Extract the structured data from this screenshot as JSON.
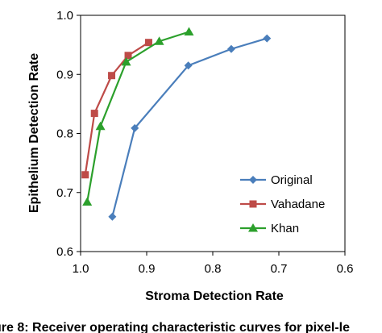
{
  "chart_data": {
    "type": "line",
    "title": "",
    "xlabel": "Stroma Detection Rate",
    "ylabel": "Epithelium Detection Rate",
    "xlim": [
      1.0,
      0.6
    ],
    "ylim": [
      0.6,
      1.0
    ],
    "x_reversed": true,
    "xticks": [
      "1.0",
      "0.9",
      "0.8",
      "0.7",
      "0.6"
    ],
    "yticks": [
      "0.6",
      "0.7",
      "0.8",
      "0.9",
      "1.0"
    ],
    "grid": false,
    "legend_position": "bottom-right-inside",
    "series": [
      {
        "name": "Original",
        "color": "#4a7ebb",
        "marker": "diamond",
        "x": [
          0.952,
          0.918,
          0.837,
          0.772,
          0.718
        ],
        "y": [
          0.659,
          0.809,
          0.915,
          0.943,
          0.961
        ]
      },
      {
        "name": "Vahadane",
        "color": "#be4b48",
        "marker": "square",
        "x": [
          0.993,
          0.979,
          0.953,
          0.928,
          0.897
        ],
        "y": [
          0.73,
          0.834,
          0.898,
          0.932,
          0.954
        ]
      },
      {
        "name": "Khan",
        "color": "#2ca02c",
        "marker": "triangle",
        "x": [
          0.99,
          0.97,
          0.931,
          0.881,
          0.836
        ],
        "y": [
          0.684,
          0.812,
          0.921,
          0.956,
          0.972
        ]
      }
    ]
  },
  "caption": {
    "text": "ure 8: Receiver operating characteristic curves for pixel-le"
  }
}
